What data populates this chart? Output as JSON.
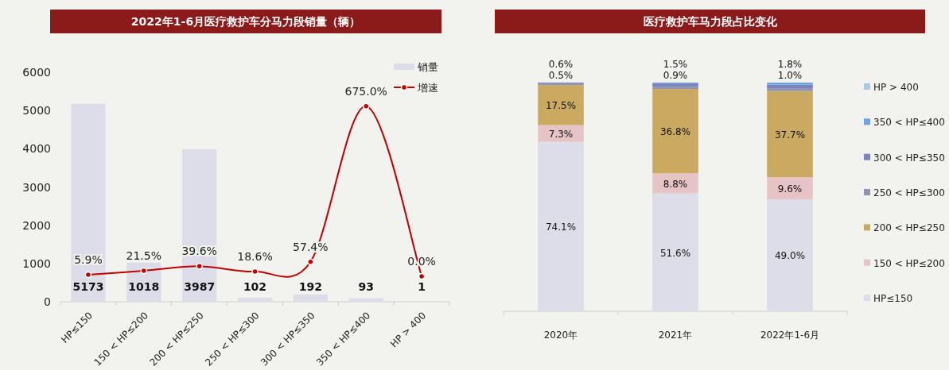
{
  "chart_data": [
    {
      "type": "bar",
      "title": "2022年1-6月医疗救护车分马力段销量（辆）",
      "categories": [
        "HP≤150",
        "150 < HP≤200",
        "200 < HP≤250",
        "250 < HP≤300",
        "300 < HP≤350",
        "350 < HP≤400",
        "HP > 400"
      ],
      "series": [
        {
          "name": "销量",
          "color": "#dcdde9",
          "values": [
            5173,
            1018,
            3987,
            102,
            192,
            93,
            1
          ],
          "value_labels": [
            "5173",
            "1018",
            "3987",
            "102",
            "192",
            "93",
            "1"
          ]
        },
        {
          "name": "增速",
          "type": "line",
          "axis": "y2",
          "color": "#c00000",
          "values": [
            5.9,
            21.5,
            39.6,
            18.6,
            57.4,
            675.0,
            0.0
          ],
          "value_labels": [
            "5.9%",
            "21.5%",
            "39.6%",
            "18.6%",
            "57.4%",
            "675.0%",
            "0.0%"
          ]
        }
      ],
      "ylim": [
        0,
        6000
      ],
      "yticks": [
        0,
        1000,
        2000,
        3000,
        4000,
        5000,
        6000
      ],
      "marker": "circle",
      "legend": "top right"
    },
    {
      "type": "bar",
      "title": "医疗救护车马力段占比变化",
      "stacked": true,
      "categories": [
        "2020年",
        "2021年",
        "2022年1-6月"
      ],
      "series": [
        {
          "name": "HP≤150",
          "color": "#dcdde8",
          "values": [
            74.1,
            51.6,
            49.0
          ],
          "value_labels": [
            "74.1%",
            "51.6%",
            "49.0%"
          ]
        },
        {
          "name": "150 < HP≤200",
          "color": "#e6c3c5",
          "values": [
            7.3,
            8.8,
            9.6
          ],
          "value_labels": [
            "7.3%",
            "8.8%",
            "9.6%"
          ]
        },
        {
          "name": "200 < HP≤250",
          "color": "#c9aa60",
          "values": [
            17.5,
            36.8,
            37.7
          ],
          "value_labels": [
            "17.5%",
            "36.8%",
            "37.7%"
          ]
        },
        {
          "name": "250 < HP≤300",
          "color": "#8f93b0",
          "values": [
            0.5,
            0.9,
            1.0
          ],
          "value_labels": [
            "0.5%",
            "0.9%",
            "1.0%"
          ]
        },
        {
          "name": "300 < HP≤350",
          "color": "#7d84bd",
          "values": [
            0.6,
            1.5,
            1.8
          ],
          "value_labels": [
            "0.6%",
            "1.5%",
            "1.8%"
          ]
        },
        {
          "name": "350 < HP≤400",
          "color": "#6fa3db",
          "values": [
            0.0,
            0.4,
            0.9
          ],
          "value_labels": [
            null,
            null,
            null
          ]
        },
        {
          "name": "HP > 400",
          "color": "#a9c8ea",
          "values": [
            0.0,
            0.0,
            0.0
          ],
          "value_labels": [
            null,
            null,
            null
          ]
        }
      ],
      "legend": "right"
    }
  ]
}
